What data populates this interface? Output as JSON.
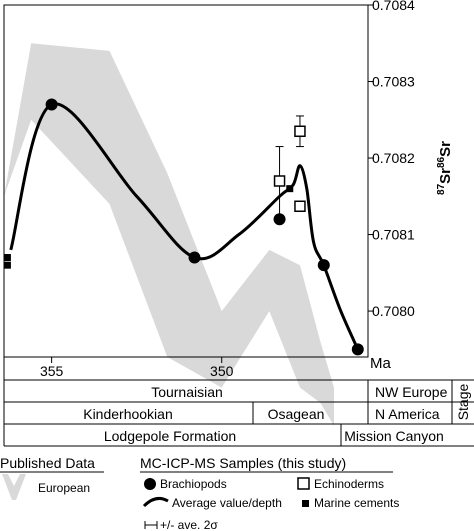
{
  "chart_data": {
    "type": "line",
    "x_axis": {
      "label": "Ma",
      "range": [
        356.4,
        345.7
      ],
      "reversed": true,
      "ticks": [
        355,
        350
      ]
    },
    "y_axis": {
      "label_main": "Sr",
      "sup1": "87",
      "sup2": "86",
      "range": [
        0.70794,
        0.7084
      ],
      "ticks": [
        "0.7084",
        "0.7083",
        "0.7082",
        "0.7081",
        "0.7080"
      ]
    },
    "grid": false,
    "european_band": {
      "x": [
        356.4,
        355.6,
        353.3,
        351.6,
        350.0,
        348.6,
        347.7,
        347.1,
        346.7
      ],
      "upper": [
        0.70815,
        0.70835,
        0.70834,
        0.70818,
        0.708,
        0.70808,
        0.70806,
        0.70796,
        0.7079
      ],
      "lower": [
        0.70815,
        0.70825,
        0.70814,
        0.70794,
        0.7079,
        0.708,
        0.7079,
        0.70788,
        0.70785
      ]
    },
    "series": [
      {
        "name": "Brachiopods",
        "marker": "circle",
        "points": [
          [
            355.0,
            0.70827
          ],
          [
            350.8,
            0.70807
          ],
          [
            348.3,
            0.70812
          ],
          [
            347.0,
            0.70806
          ],
          [
            346.0,
            0.70795
          ]
        ]
      },
      {
        "name": "Echinoderms",
        "marker": "square-open",
        "points": [
          [
            348.3,
            0.70817
          ],
          [
            347.7,
            0.708137
          ],
          [
            347.7,
            0.708235
          ]
        ],
        "errors": [
          4.5e-05,
          0,
          2e-05
        ]
      },
      {
        "name": "Marine cements",
        "marker": "square",
        "points": [
          [
            356.3,
            0.70807
          ],
          [
            356.3,
            0.70806
          ],
          [
            348.0,
            0.70816
          ]
        ]
      },
      {
        "name": "Average value/depth",
        "marker": "line",
        "x": [
          356.2,
          355.0,
          352.5,
          350.8,
          349.5,
          348.3,
          347.9,
          347.7,
          347.5,
          347.3,
          347.0,
          346.5,
          346.0
        ],
        "y": [
          0.70808,
          0.70827,
          0.70815,
          0.70807,
          0.7081,
          0.70815,
          0.708165,
          0.70819,
          0.70816,
          0.70809,
          0.70806,
          0.708,
          0.70795
        ]
      }
    ]
  },
  "stages": {
    "label": "Stage",
    "tournaisian": "Tournaisian",
    "nw_europe": "NW Europe",
    "kinderhookian": "Kinderhookian",
    "osagean": "Osagean",
    "n_america": "N America",
    "lodgepole": "Lodgepole Formation",
    "mission_canyon": "Mission Canyon"
  },
  "legend": {
    "published_title": "Published Data",
    "european": "European",
    "mc_title": "MC-ICP-MS Samples (this study)",
    "brachiopods": "Brachiopods",
    "echinoderms": "Echinoderms",
    "average": "Average value/depth",
    "cements": "Marine cements",
    "errorbar": "+/- ave. 2σ"
  },
  "colors": {
    "band": "#d9d9d9",
    "ink": "#000000"
  }
}
